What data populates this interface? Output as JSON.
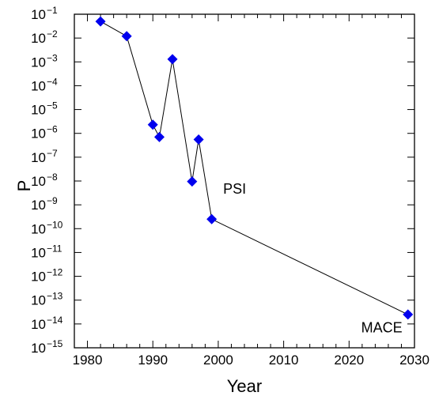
{
  "chart_data": {
    "type": "scatter",
    "xlabel": "Year",
    "ylabel": "P",
    "xscale": "linear",
    "yscale": "log",
    "xlim": [
      1978,
      2030
    ],
    "ylim": [
      1e-15,
      0.1
    ],
    "grid": false,
    "x_ticks": [
      "1980",
      "1990",
      "2000",
      "2010",
      "2020",
      "2030"
    ],
    "y_tick_exponents": [
      -15,
      -14,
      -13,
      -12,
      -11,
      -10,
      -9,
      -8,
      -7,
      -6,
      -5,
      -4,
      -3,
      -2,
      -1
    ],
    "y_tick_base": "10",
    "marker": "diamond",
    "marker_color": "#0000ee",
    "line_color": "#000000",
    "series": [
      {
        "x": [
          1982,
          1986,
          1990,
          1991,
          1993,
          1996,
          1997,
          1999,
          2029
        ],
        "y": [
          0.05,
          0.012,
          2.3e-06,
          7e-07,
          0.0013,
          9.5e-09,
          5.5e-07,
          2.5e-10,
          2.5e-14
        ]
      }
    ],
    "annotations": [
      {
        "text": "PSI",
        "x": 2002.5,
        "y": 3e-09
      },
      {
        "text": "MACE",
        "x": 2025,
        "y": 4.5e-15
      }
    ]
  }
}
